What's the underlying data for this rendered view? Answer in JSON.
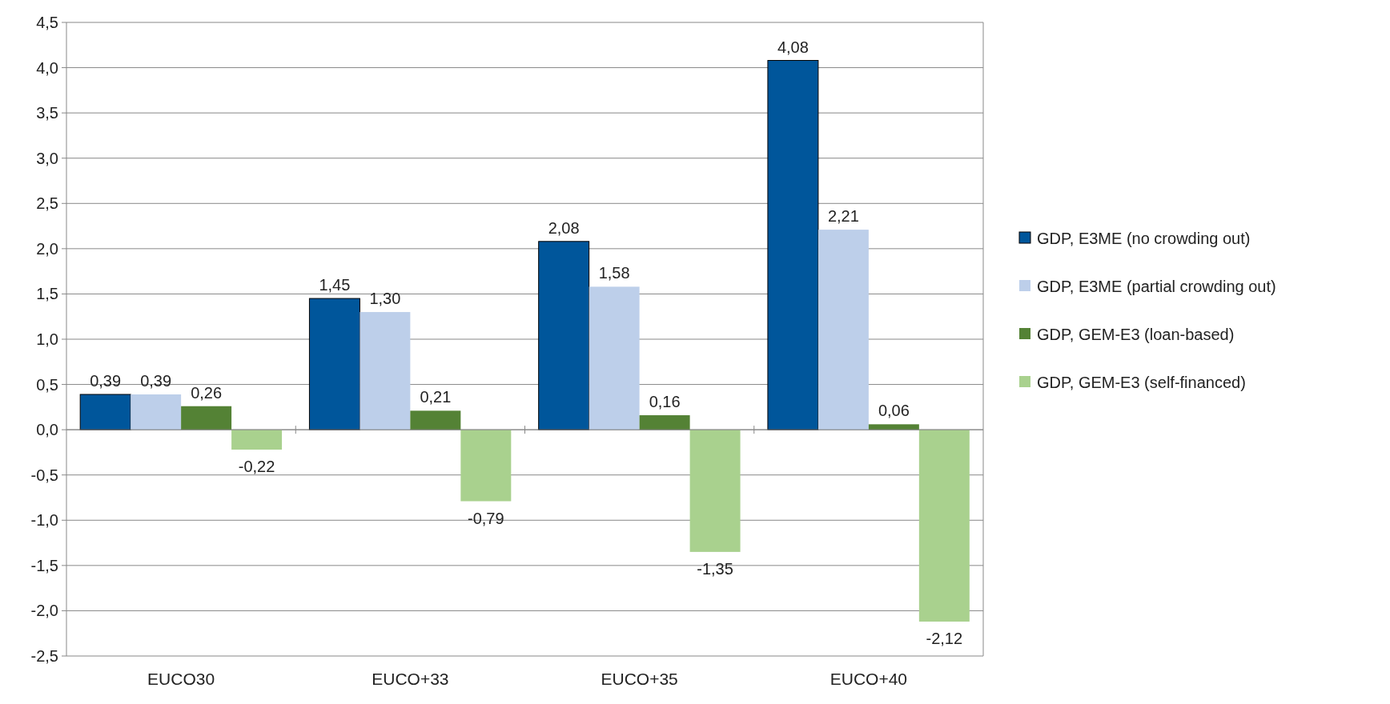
{
  "chart_data": {
    "type": "bar",
    "categories": [
      "EUCO30",
      "EUCO+33",
      "EUCO+35",
      "EUCO+40"
    ],
    "series": [
      {
        "name": "GDP, E3ME (no crowding out)",
        "color": "#00569b",
        "values": [
          0.39,
          1.45,
          2.08,
          4.08
        ],
        "value_labels": [
          "0,39",
          "1,45",
          "2,08",
          "4,08"
        ]
      },
      {
        "name": "GDP, E3ME (partial crowding out)",
        "color": "#bdcfea",
        "values": [
          0.39,
          1.3,
          1.58,
          2.21
        ],
        "value_labels": [
          "0,39",
          "1,30",
          "1,58",
          "2,21"
        ]
      },
      {
        "name": "GDP, GEM-E3 (loan-based)",
        "color": "#548235",
        "values": [
          0.26,
          0.21,
          0.16,
          0.06
        ],
        "value_labels": [
          "0,26",
          "0,21",
          "0,16",
          "0,06"
        ]
      },
      {
        "name": "GDP, GEM-E3 (self-financed)",
        "color": "#a9d18e",
        "values": [
          -0.22,
          -0.79,
          -1.35,
          -2.12
        ],
        "value_labels": [
          "-0,22",
          "-0,79",
          "-1,35",
          "-2,12"
        ]
      }
    ],
    "ylim": [
      -2.5,
      4.5
    ],
    "yticks": [
      {
        "value": -2.5,
        "label": "-2,5"
      },
      {
        "value": -2,
        "label": "-2,0"
      },
      {
        "value": -1.5,
        "label": "-1,5"
      },
      {
        "value": -1,
        "label": "-1,0"
      },
      {
        "value": -0.5,
        "label": "-0,5"
      },
      {
        "value": 0,
        "label": "0,0"
      },
      {
        "value": 0.5,
        "label": "0,5"
      },
      {
        "value": 1,
        "label": "1,0"
      },
      {
        "value": 1.5,
        "label": "1,5"
      },
      {
        "value": 2,
        "label": "2,0"
      },
      {
        "value": 2.5,
        "label": "2,5"
      },
      {
        "value": 3,
        "label": "3,0"
      },
      {
        "value": 3.5,
        "label": "3,5"
      },
      {
        "value": 4,
        "label": "4,0"
      },
      {
        "value": 4.5,
        "label": "4,5"
      }
    ],
    "grid": "y",
    "legend": "right"
  }
}
